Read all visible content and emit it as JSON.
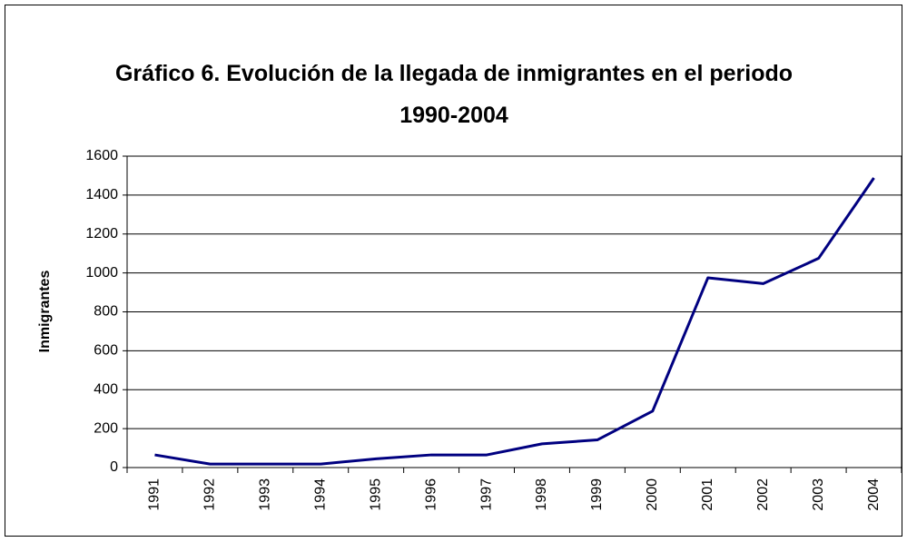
{
  "chart_data": {
    "type": "line",
    "title": "Gráfico 6. Evolución de la llegada de inmigrantes en el periodo 1990-2004",
    "y_label": "Inmigrantes",
    "categories": [
      "1991",
      "1992",
      "1993",
      "1994",
      "1995",
      "1996",
      "1997",
      "1998",
      "1999",
      "2000",
      "2001",
      "2002",
      "2003",
      "2004"
    ],
    "values": [
      65,
      18,
      18,
      18,
      45,
      65,
      65,
      122,
      142,
      290,
      975,
      945,
      1075,
      1488
    ],
    "color": "#000080",
    "ylim": [
      0,
      1600
    ],
    "yticks": [
      0,
      200,
      400,
      600,
      800,
      1000,
      1200,
      1400,
      1600
    ],
    "grid": true
  }
}
